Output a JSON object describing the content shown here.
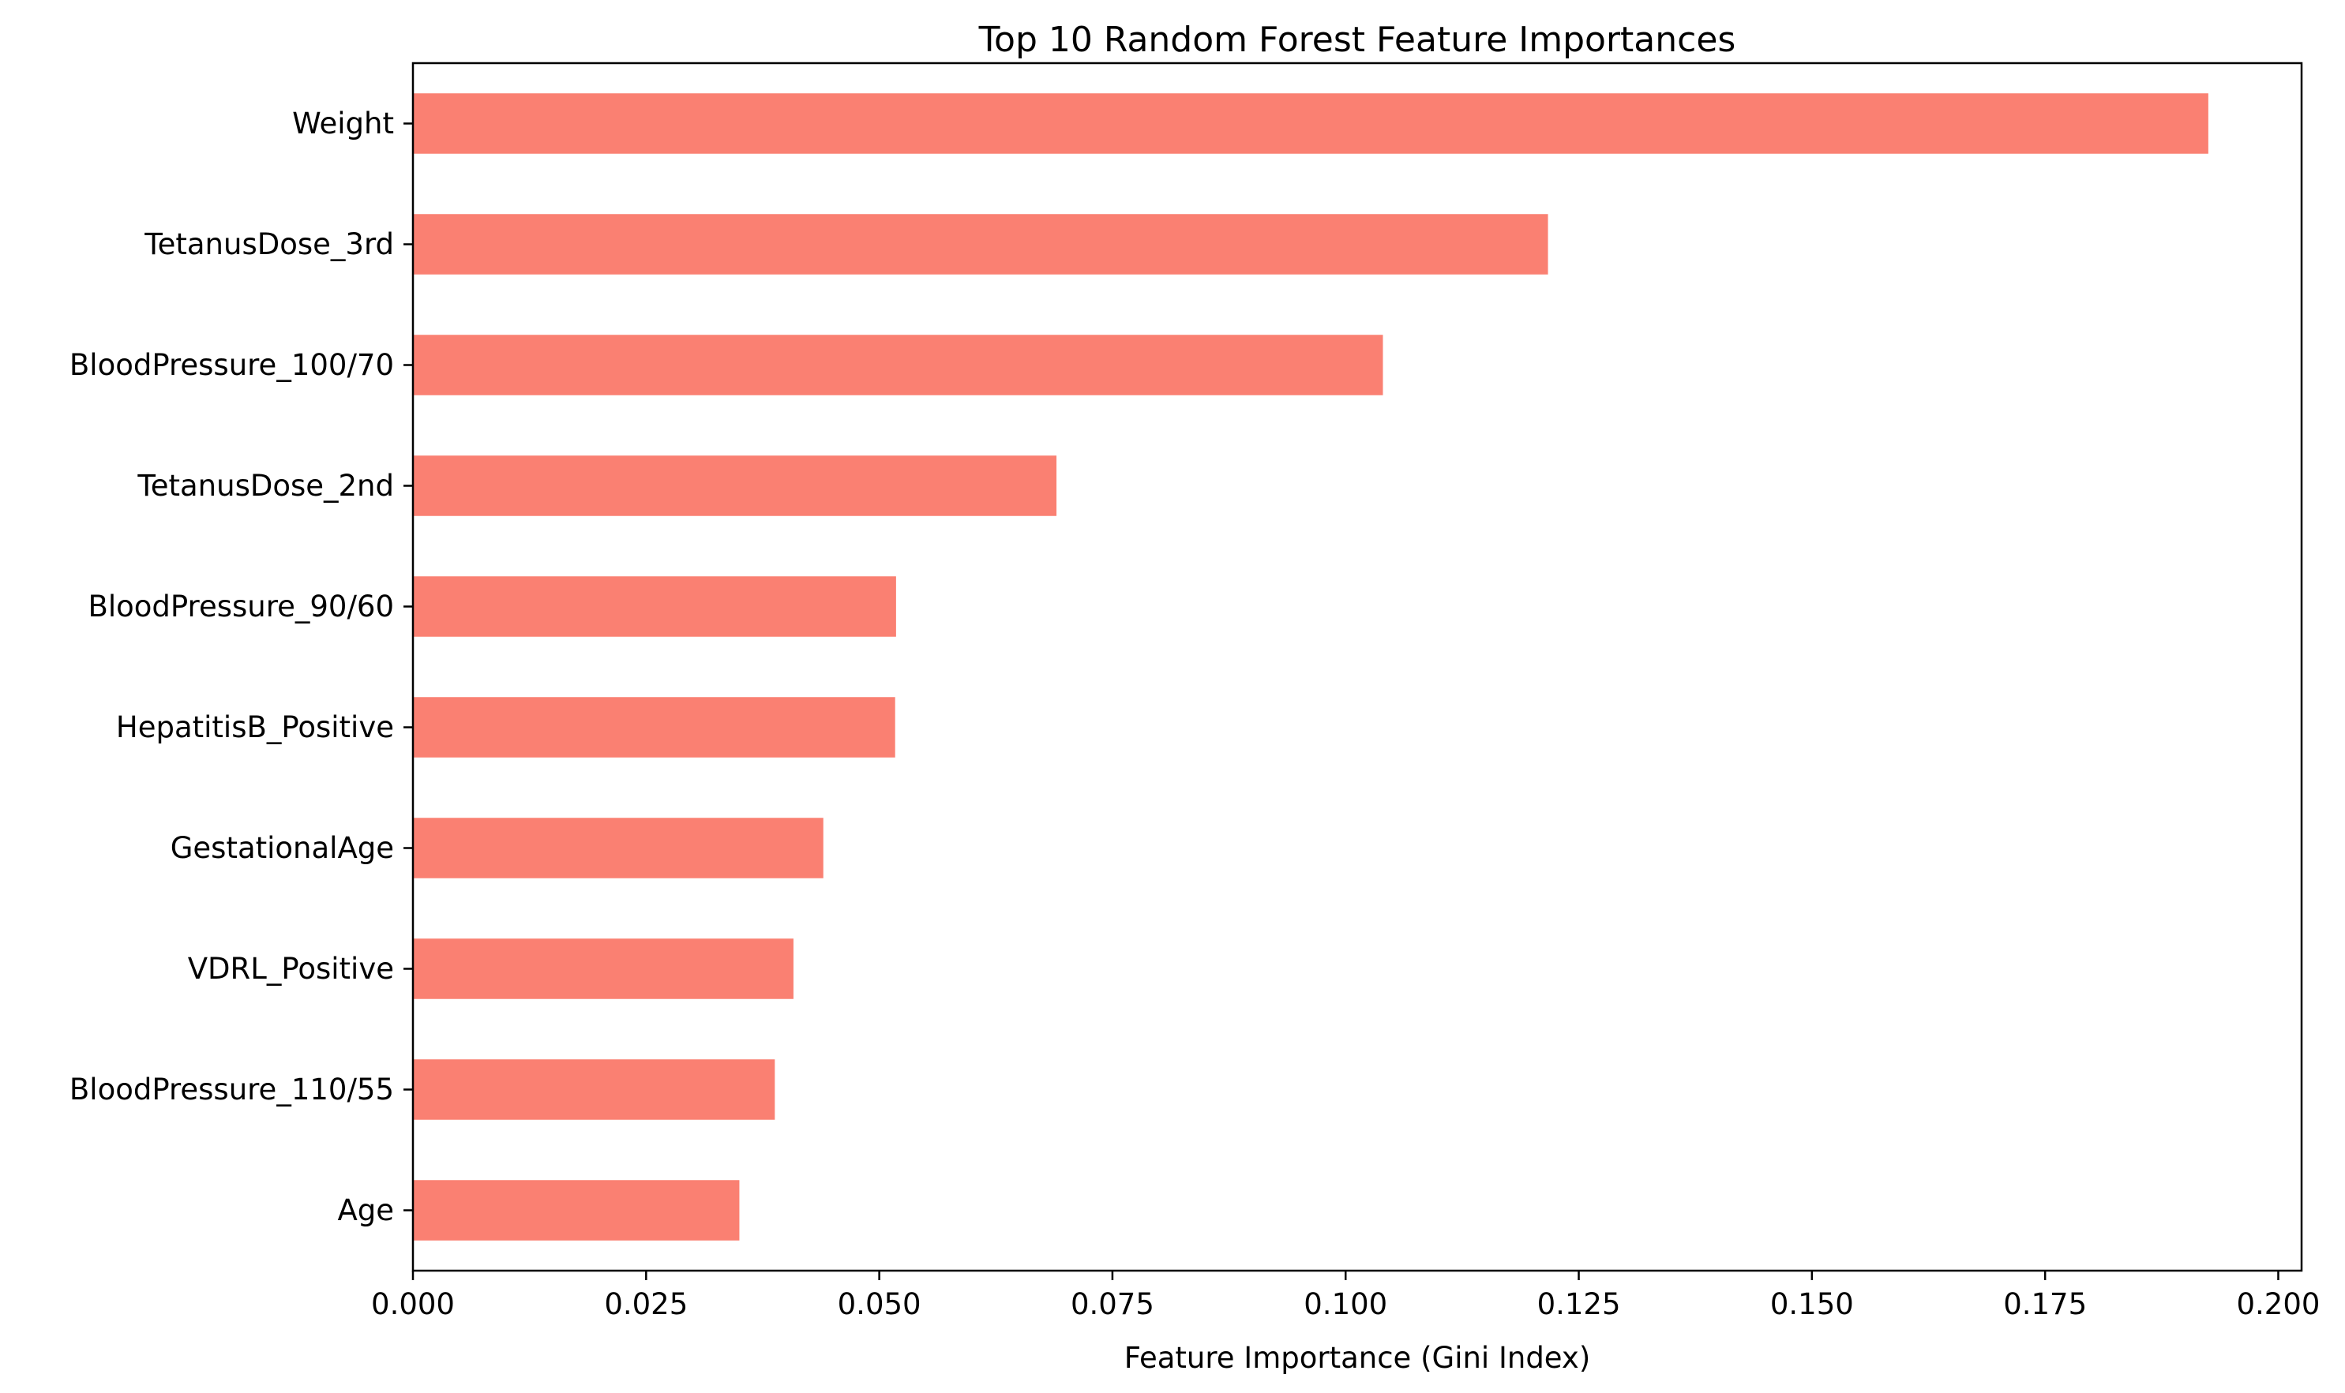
{
  "chart_data": {
    "type": "bar",
    "orientation": "horizontal",
    "title": "Top 10 Random Forest Feature Importances",
    "xlabel": "Feature Importance (Gini Index)",
    "ylabel": "",
    "xlim": [
      0,
      0.2025
    ],
    "xticks": [
      "0.000",
      "0.025",
      "0.050",
      "0.075",
      "0.100",
      "0.125",
      "0.150",
      "0.175",
      "0.200"
    ],
    "categories": [
      "Weight",
      "TetanusDose_3rd",
      "BloodPressure_100/70",
      "TetanusDose_2nd",
      "BloodPressure_90/60",
      "HepatitisB_Positive",
      "GestationalAge",
      "VDRL_Positive",
      "BloodPressure_110/55",
      "Age"
    ],
    "values": [
      0.1925,
      0.1217,
      0.104,
      0.069,
      0.0518,
      0.0517,
      0.044,
      0.0408,
      0.0388,
      0.035
    ],
    "bar_color": "#fa8072",
    "grid": false,
    "legend": "none"
  }
}
